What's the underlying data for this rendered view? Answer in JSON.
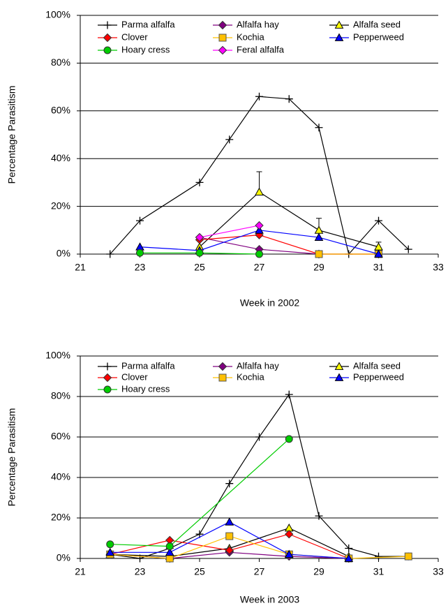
{
  "chart_data": [
    {
      "type": "line",
      "x_label": "Week in 2002",
      "y_label": "Percentage Parasitism",
      "xlim": [
        21,
        33
      ],
      "xticks": [
        21,
        23,
        25,
        27,
        29,
        31,
        33
      ],
      "ylim": [
        0,
        100
      ],
      "yticks": [
        {
          "value": 0,
          "label": "0%"
        },
        {
          "value": 20,
          "label": "20%"
        },
        {
          "value": 40,
          "label": "40%"
        },
        {
          "value": 60,
          "label": "60%"
        },
        {
          "value": 80,
          "label": "80%"
        },
        {
          "value": 100,
          "label": "100%"
        }
      ],
      "grid": true,
      "series": [
        {
          "name": "Parma alfalfa",
          "color": "#000000",
          "marker": "plus",
          "x": [
            22,
            23,
            25,
            26,
            27,
            28,
            29,
            30,
            31,
            32
          ],
          "values": [
            0,
            14,
            30,
            48,
            66,
            65,
            53,
            0,
            14,
            2
          ]
        },
        {
          "name": "Alfalfa hay",
          "color": "#800080",
          "marker": "diamond",
          "x": [
            25,
            27,
            29,
            31
          ],
          "values": [
            7,
            2,
            0,
            0
          ]
        },
        {
          "name": "Alfalfa seed",
          "color": "#000000",
          "marker_color": "#ffff00",
          "marker": "triangle",
          "x": [
            25,
            27,
            29,
            31
          ],
          "values": [
            3,
            26,
            10,
            3
          ],
          "errors": [
            null,
            8.5,
            5,
            2
          ]
        },
        {
          "name": "Clover",
          "color": "#ff0000",
          "marker": "diamond",
          "x": [
            25,
            27,
            29,
            31
          ],
          "values": [
            6,
            8,
            0,
            0
          ]
        },
        {
          "name": "Kochia",
          "color": "#ffc000",
          "marker": "square",
          "x": [
            29,
            31
          ],
          "values": [
            0,
            0
          ]
        },
        {
          "name": "Pepperweed",
          "color": "#0000ff",
          "marker": "triangle",
          "x": [
            23,
            25,
            27,
            29,
            31
          ],
          "values": [
            3,
            1.5,
            10,
            7,
            0
          ]
        },
        {
          "name": "Hoary cress",
          "color": "#00cc00",
          "marker": "circle",
          "x": [
            23,
            25,
            27
          ],
          "values": [
            0.5,
            0.5,
            0
          ]
        },
        {
          "name": "Feral alfalfa",
          "color": "#ff00ff",
          "marker": "diamond",
          "x": [
            25,
            27
          ],
          "values": [
            7,
            12
          ]
        }
      ]
    },
    {
      "type": "line",
      "x_label": "Week in 2003",
      "y_label": "Percentage Parasitism",
      "xlim": [
        21,
        33
      ],
      "xticks": [
        21,
        23,
        25,
        27,
        29,
        31,
        33
      ],
      "ylim": [
        0,
        100
      ],
      "yticks": [
        {
          "value": 0,
          "label": "0%"
        },
        {
          "value": 20,
          "label": "20%"
        },
        {
          "value": 40,
          "label": "40%"
        },
        {
          "value": 60,
          "label": "60%"
        },
        {
          "value": 80,
          "label": "80%"
        },
        {
          "value": 100,
          "label": "100%"
        }
      ],
      "grid": true,
      "series": [
        {
          "name": "Parma alfalfa",
          "color": "#000000",
          "marker": "plus",
          "x": [
            22,
            23,
            24,
            25,
            26,
            27,
            28,
            29,
            30,
            31,
            32
          ],
          "values": [
            2,
            0,
            5,
            12,
            37,
            60,
            81,
            21,
            5,
            1,
            1
          ]
        },
        {
          "name": "Alfalfa hay",
          "color": "#800080",
          "marker": "diamond",
          "x": [
            22,
            24,
            26,
            28,
            30
          ],
          "values": [
            2,
            0,
            3,
            1,
            0
          ]
        },
        {
          "name": "Alfalfa seed",
          "color": "#000000",
          "marker_color": "#ffff00",
          "marker": "triangle",
          "x": [
            22,
            24,
            26,
            28,
            30
          ],
          "values": [
            2,
            1,
            5,
            15,
            1
          ]
        },
        {
          "name": "Clover",
          "color": "#ff0000",
          "marker": "diamond",
          "x": [
            22,
            24,
            26,
            28,
            30
          ],
          "values": [
            2,
            9,
            4,
            12,
            0
          ]
        },
        {
          "name": "Kochia",
          "color": "#ffc000",
          "marker": "square",
          "x": [
            22,
            24,
            26,
            28,
            30,
            32
          ],
          "values": [
            2,
            0,
            11,
            2,
            0,
            1
          ]
        },
        {
          "name": "Pepperweed",
          "color": "#0000ff",
          "marker": "triangle",
          "x": [
            22,
            24,
            26,
            28,
            30
          ],
          "values": [
            3,
            3,
            18,
            2,
            0
          ]
        },
        {
          "name": "Hoary cress",
          "color": "#00cc00",
          "marker": "circle",
          "x": [
            22,
            24,
            28
          ],
          "values": [
            7,
            6,
            59
          ]
        }
      ]
    }
  ]
}
